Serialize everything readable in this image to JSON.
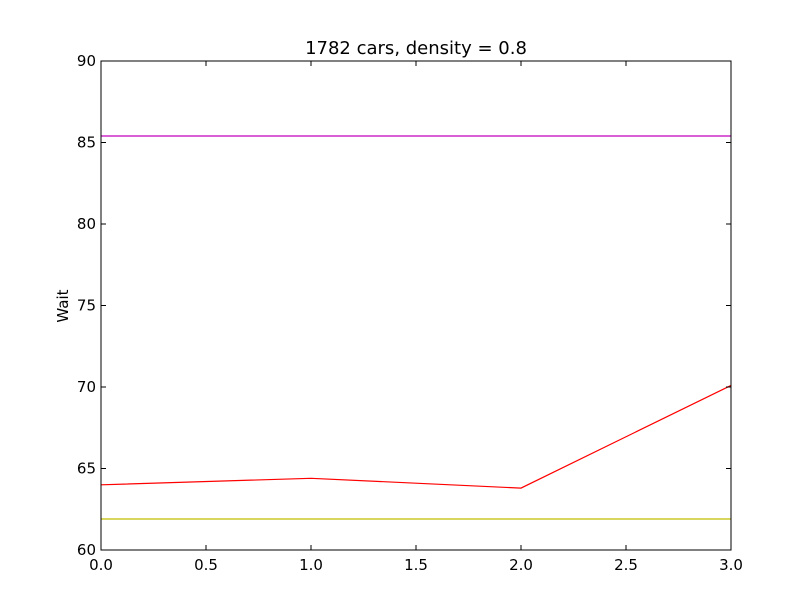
{
  "chart_data": {
    "type": "line",
    "title": "1782 cars, density = 0.8",
    "xlabel": "",
    "ylabel": "Wait",
    "xlim": [
      0.0,
      3.0
    ],
    "ylim": [
      60,
      90
    ],
    "grid": false,
    "x_ticks": [
      "0.0",
      "0.5",
      "1.0",
      "1.5",
      "2.0",
      "2.5",
      "3.0"
    ],
    "y_ticks": [
      "60",
      "65",
      "70",
      "75",
      "80",
      "85",
      "90"
    ],
    "series": [
      {
        "color": "#bf00bf",
        "x": [
          0,
          1,
          2,
          3
        ],
        "values": [
          85.4,
          85.4,
          85.4,
          85.4
        ]
      },
      {
        "color": "#ff0000",
        "x": [
          0,
          1,
          2,
          3
        ],
        "values": [
          64.0,
          64.4,
          63.8,
          70.1
        ]
      },
      {
        "color": "#bfbf00",
        "x": [
          0,
          1,
          2,
          3
        ],
        "values": [
          61.9,
          61.9,
          61.9,
          61.9
        ]
      }
    ]
  }
}
